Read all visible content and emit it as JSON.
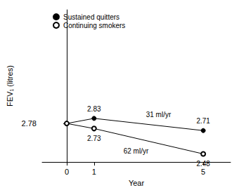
{
  "chart_data": {
    "type": "line",
    "x_label": "Year",
    "y_label": "FEV₁ (litres)",
    "x": [
      0,
      1,
      5
    ],
    "xlim": [
      -0.9,
      6
    ],
    "xticks": [
      0,
      1,
      5
    ],
    "ylim": [
      2.4,
      3.9
    ],
    "yticks": [
      2.78
    ],
    "grid": false,
    "legend": "upper left",
    "data_labels": true,
    "series": [
      {
        "name": "Sustained quitters",
        "color": "#000000",
        "marker": "circle",
        "line_style": "solid",
        "values": [
          2.78,
          2.83,
          2.71
        ],
        "value_labels": [
          null,
          "2.83",
          "2.71"
        ]
      },
      {
        "name": "Continuing smokers",
        "color": "#000000",
        "marker": "open_circle",
        "line_style": "solid",
        "values": [
          2.78,
          2.73,
          2.48
        ],
        "value_labels": [
          null,
          "2.73",
          "2.48"
        ]
      }
    ],
    "annotations": [
      {
        "text": "31 ml/yr",
        "series": "Sustained quitters"
      },
      {
        "text": "62 ml/yr",
        "series": "Continuing smokers"
      }
    ]
  }
}
